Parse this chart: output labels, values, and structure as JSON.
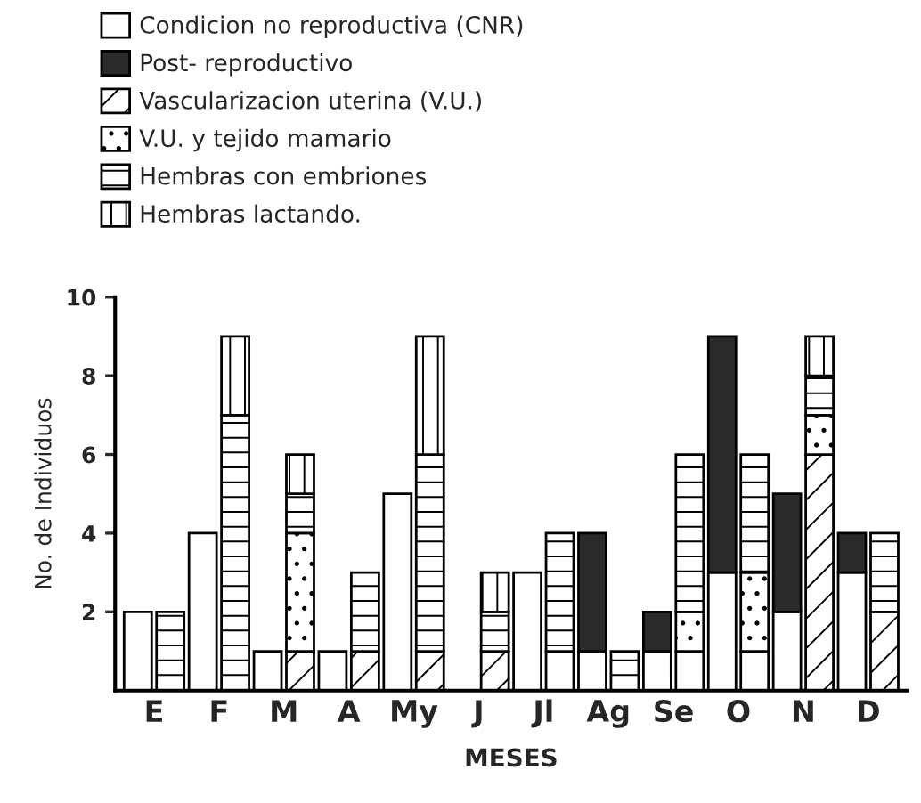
{
  "chart_data": {
    "type": "bar",
    "stacked": true,
    "xlabel": "MESES",
    "ylabel": "No. de Individuos",
    "categories": [
      "E",
      null,
      "F",
      null,
      "M",
      null,
      "A",
      null,
      "My",
      null,
      "J",
      null,
      "Jl",
      null,
      "Ag",
      null,
      "Se",
      null,
      "O",
      null,
      "N",
      null,
      "D",
      null
    ],
    "series": [
      {
        "name": "Condicion no reproductiva (CNR)",
        "color": "#ffffff",
        "values": [
          2,
          null,
          4,
          null,
          1,
          null,
          1,
          null,
          5,
          null,
          null,
          null,
          3,
          1,
          1,
          null,
          1,
          1,
          3,
          1,
          2,
          null,
          3,
          null
        ]
      },
      {
        "name": "Post- reproductivo",
        "color": "#2a2a2a",
        "values": [
          null,
          null,
          null,
          null,
          null,
          null,
          null,
          null,
          null,
          null,
          null,
          null,
          null,
          null,
          3,
          null,
          1,
          null,
          6,
          null,
          3,
          null,
          1,
          null
        ]
      },
      {
        "name": "Vascularizacion uterina (V.U.)",
        "color": "#000000",
        "values": [
          null,
          null,
          null,
          null,
          null,
          1,
          null,
          1,
          null,
          1,
          null,
          1,
          null,
          null,
          null,
          null,
          null,
          null,
          null,
          null,
          null,
          6,
          null,
          2
        ]
      },
      {
        "name": "V.U. y tejido mamario",
        "color": "#000000",
        "values": [
          null,
          null,
          null,
          null,
          null,
          3,
          null,
          null,
          null,
          null,
          null,
          null,
          null,
          null,
          null,
          null,
          null,
          1,
          null,
          2,
          null,
          1,
          null,
          null
        ]
      },
      {
        "name": "Hembras con embriones",
        "color": "#000000",
        "values": [
          null,
          2,
          null,
          7,
          null,
          1,
          null,
          2,
          null,
          5,
          null,
          1,
          null,
          3,
          null,
          1,
          null,
          4,
          null,
          3,
          null,
          1,
          null,
          2
        ]
      },
      {
        "name": "Hembras lactando.",
        "color": "#000000",
        "values": [
          null,
          null,
          null,
          2,
          null,
          1,
          null,
          null,
          null,
          3,
          null,
          1,
          null,
          null,
          null,
          null,
          null,
          null,
          null,
          null,
          null,
          1,
          null,
          null
        ]
      }
    ],
    "ylim": [
      0,
      10
    ],
    "yticks": [
      2,
      4,
      6,
      8,
      10
    ],
    "grid": false,
    "legend": "top left"
  }
}
